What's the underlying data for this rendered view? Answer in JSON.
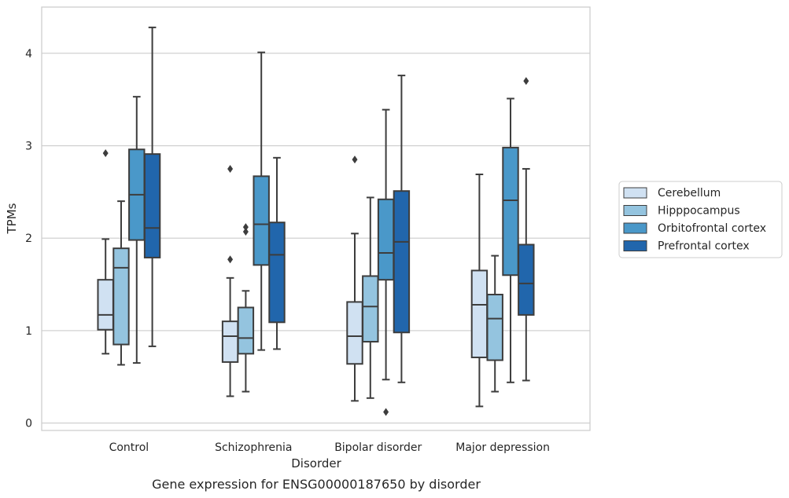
{
  "chart_data": {
    "type": "box",
    "title": "",
    "caption": "Gene expression for ENSG00000187650 by disorder",
    "xlabel": "Disorder",
    "ylabel": "TPMs",
    "ylim": [
      -0.08,
      4.5
    ],
    "yticks": [
      0,
      1,
      2,
      3,
      4
    ],
    "grid": "horizontal",
    "legend_position": "right",
    "categories": [
      "Control",
      "Schizophrenia",
      "Bipolar disorder",
      "Major depression"
    ],
    "series": [
      {
        "name": "Cerebellum",
        "color": "#d0e1f2",
        "boxes": [
          {
            "whisker_low": 0.75,
            "q1": 1.01,
            "median": 1.17,
            "q3": 1.55,
            "whisker_high": 1.99,
            "outliers": [
              2.92
            ]
          },
          {
            "whisker_low": 0.29,
            "q1": 0.66,
            "median": 0.94,
            "q3": 1.1,
            "whisker_high": 1.57,
            "outliers": [
              1.77,
              2.75
            ]
          },
          {
            "whisker_low": 0.24,
            "q1": 0.64,
            "median": 0.94,
            "q3": 1.31,
            "whisker_high": 2.05,
            "outliers": [
              2.85
            ]
          },
          {
            "whisker_low": 0.18,
            "q1": 0.71,
            "median": 1.28,
            "q3": 1.65,
            "whisker_high": 2.69,
            "outliers": []
          }
        ]
      },
      {
        "name": "Hipppocampus",
        "color": "#94c4df",
        "boxes": [
          {
            "whisker_low": 0.63,
            "q1": 0.85,
            "median": 1.68,
            "q3": 1.89,
            "whisker_high": 2.4,
            "outliers": []
          },
          {
            "whisker_low": 0.34,
            "q1": 0.75,
            "median": 0.92,
            "q3": 1.25,
            "whisker_high": 1.43,
            "outliers": [
              2.07,
              2.12
            ]
          },
          {
            "whisker_low": 0.27,
            "q1": 0.88,
            "median": 1.26,
            "q3": 1.59,
            "whisker_high": 2.44,
            "outliers": []
          },
          {
            "whisker_low": 0.34,
            "q1": 0.68,
            "median": 1.13,
            "q3": 1.39,
            "whisker_high": 1.81,
            "outliers": []
          }
        ]
      },
      {
        "name": "Orbitofrontal cortex",
        "color": "#4a98c9",
        "boxes": [
          {
            "whisker_low": 0.65,
            "q1": 1.98,
            "median": 2.47,
            "q3": 2.96,
            "whisker_high": 3.53,
            "outliers": []
          },
          {
            "whisker_low": 0.79,
            "q1": 1.71,
            "median": 2.15,
            "q3": 2.67,
            "whisker_high": 4.01,
            "outliers": []
          },
          {
            "whisker_low": 0.47,
            "q1": 1.55,
            "median": 1.84,
            "q3": 2.42,
            "whisker_high": 3.39,
            "outliers": [
              0.12
            ]
          },
          {
            "whisker_low": 0.44,
            "q1": 1.6,
            "median": 2.41,
            "q3": 2.98,
            "whisker_high": 3.51,
            "outliers": []
          }
        ]
      },
      {
        "name": "Prefrontal cortex",
        "color": "#2166ac",
        "boxes": [
          {
            "whisker_low": 0.83,
            "q1": 1.79,
            "median": 2.11,
            "q3": 2.91,
            "whisker_high": 4.28,
            "outliers": []
          },
          {
            "whisker_low": 0.8,
            "q1": 1.09,
            "median": 1.82,
            "q3": 2.17,
            "whisker_high": 2.87,
            "outliers": []
          },
          {
            "whisker_low": 0.44,
            "q1": 0.98,
            "median": 1.96,
            "q3": 2.51,
            "whisker_high": 3.76,
            "outliers": []
          },
          {
            "whisker_low": 0.46,
            "q1": 1.17,
            "median": 1.51,
            "q3": 1.93,
            "whisker_high": 2.75,
            "outliers": [
              3.7
            ]
          }
        ]
      }
    ]
  }
}
